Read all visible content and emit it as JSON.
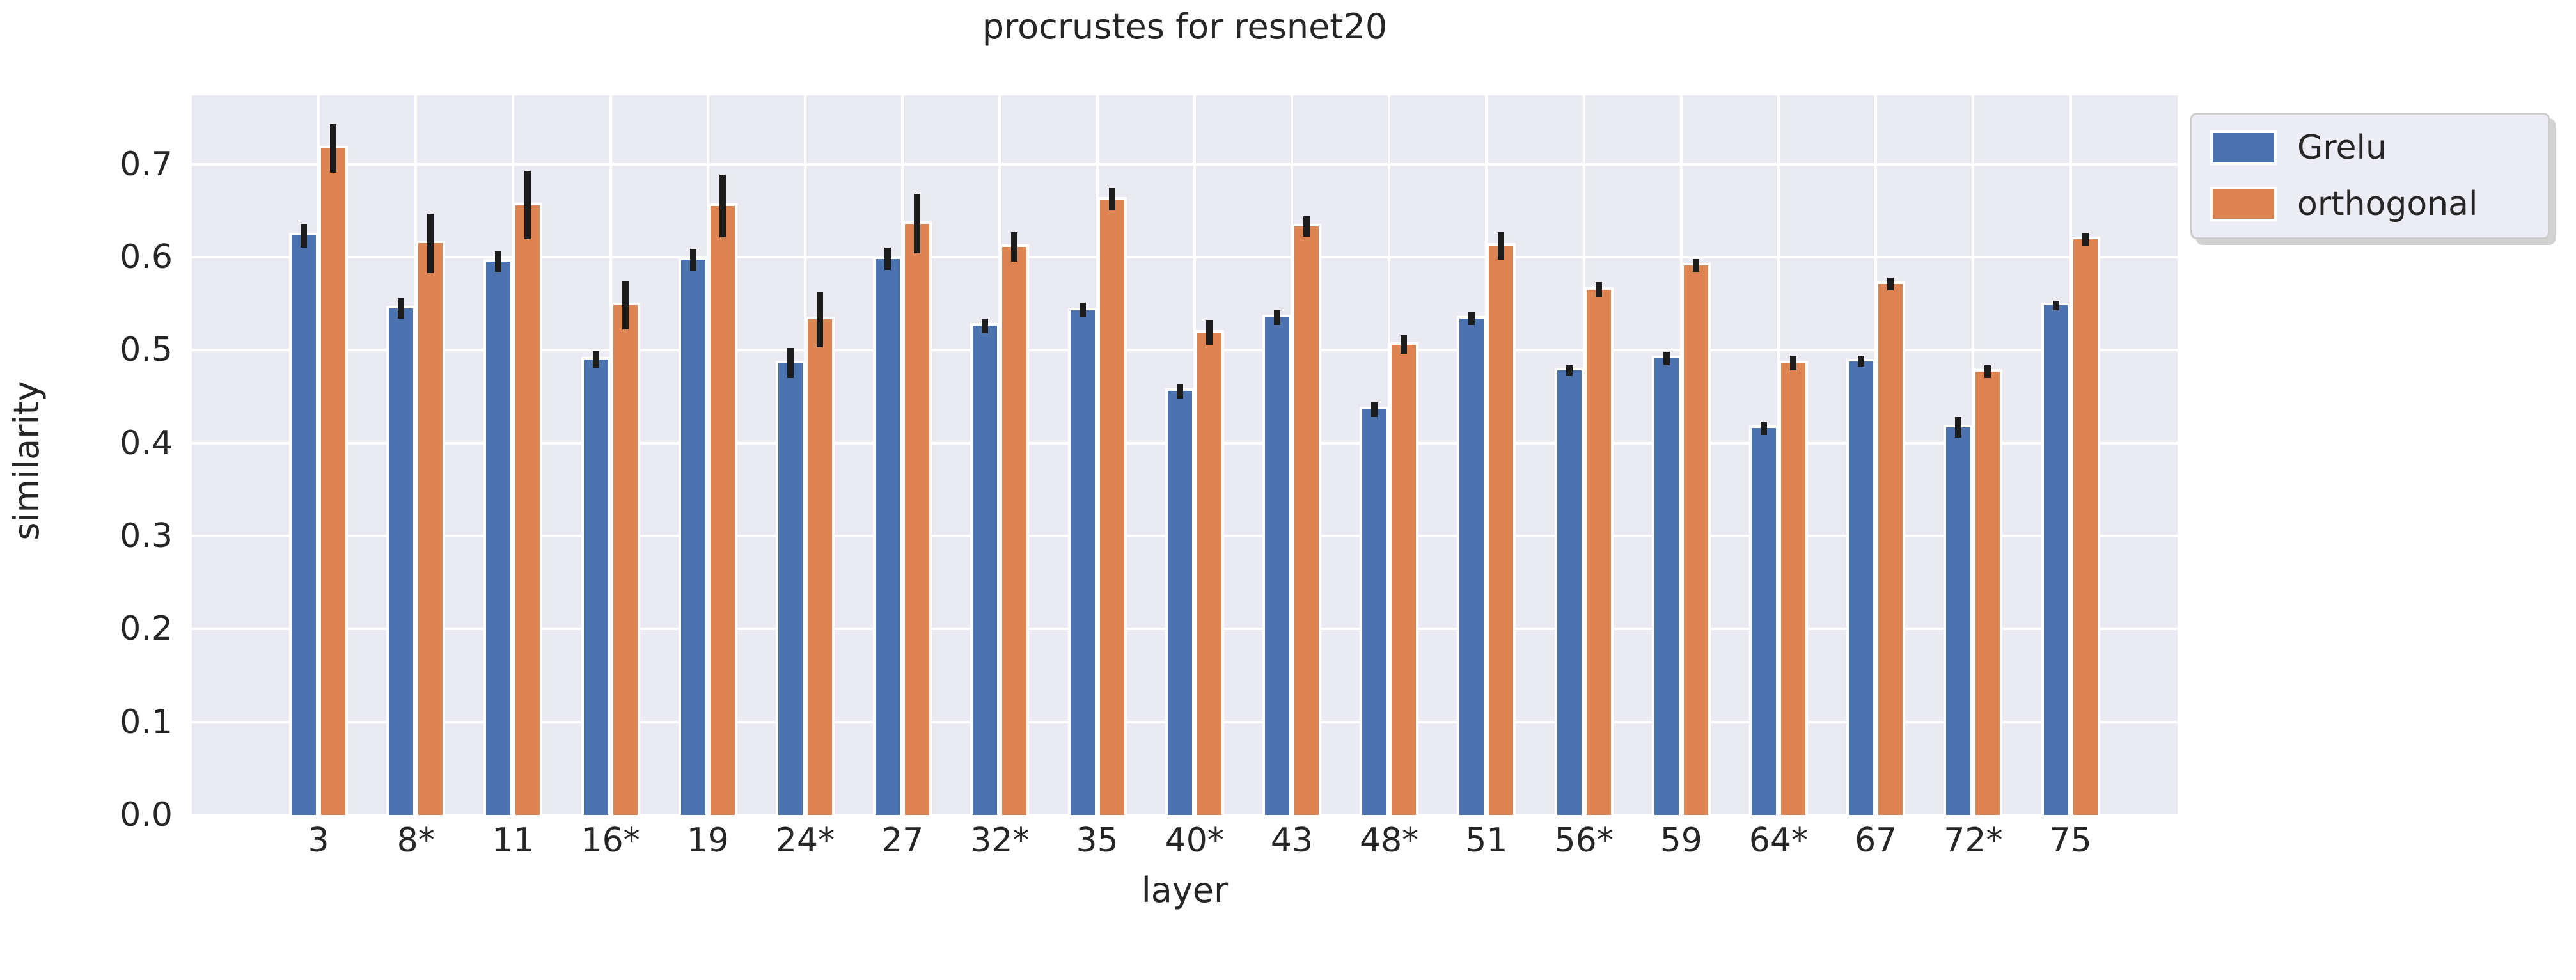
{
  "figure": {
    "title": "procrustes for resnet20",
    "xlabel": "layer",
    "ylabel": "similarity"
  },
  "colors": {
    "grelu": "#4C72B0",
    "orthogonal": "#DD8452",
    "plot_background": "#EAEAF2",
    "grid": "#ffffff",
    "error_bar": "#1c1c1c",
    "text": "#262626"
  },
  "legend": {
    "items": [
      {
        "label": "Grelu",
        "color": "#4C72B0"
      },
      {
        "label": "orthogonal",
        "color": "#DD8452"
      }
    ]
  },
  "chart_data": {
    "type": "bar",
    "title": "procrustes for resnet20",
    "xlabel": "layer",
    "ylabel": "similarity",
    "categories": [
      "3",
      "8*",
      "11",
      "16*",
      "19",
      "24*",
      "27",
      "32*",
      "35",
      "40*",
      "43",
      "48*",
      "51",
      "56*",
      "59",
      "64*",
      "67",
      "72*",
      "75"
    ],
    "series": [
      {
        "name": "Grelu",
        "color": "#4C72B0",
        "values": [
          0.623,
          0.545,
          0.595,
          0.49,
          0.597,
          0.486,
          0.598,
          0.526,
          0.543,
          0.456,
          0.535,
          0.436,
          0.534,
          0.478,
          0.491,
          0.416,
          0.488,
          0.417,
          0.548
        ],
        "errors": [
          0.013,
          0.011,
          0.011,
          0.009,
          0.012,
          0.016,
          0.012,
          0.008,
          0.008,
          0.008,
          0.008,
          0.008,
          0.007,
          0.006,
          0.007,
          0.007,
          0.006,
          0.011,
          0.005
        ]
      },
      {
        "name": "orthogonal",
        "color": "#DD8452",
        "values": [
          0.717,
          0.615,
          0.656,
          0.548,
          0.655,
          0.533,
          0.636,
          0.611,
          0.662,
          0.519,
          0.633,
          0.506,
          0.612,
          0.565,
          0.591,
          0.486,
          0.571,
          0.477,
          0.619
        ],
        "errors": [
          0.026,
          0.032,
          0.037,
          0.026,
          0.034,
          0.03,
          0.032,
          0.016,
          0.012,
          0.013,
          0.011,
          0.01,
          0.015,
          0.008,
          0.007,
          0.008,
          0.007,
          0.007,
          0.007
        ]
      }
    ],
    "ylim": [
      0,
      0.774
    ],
    "yticks": [
      0.0,
      0.1,
      0.2,
      0.3,
      0.4,
      0.5,
      0.6,
      0.7
    ],
    "grid": true,
    "error_bars": true,
    "legend_position": "outside upper right"
  }
}
